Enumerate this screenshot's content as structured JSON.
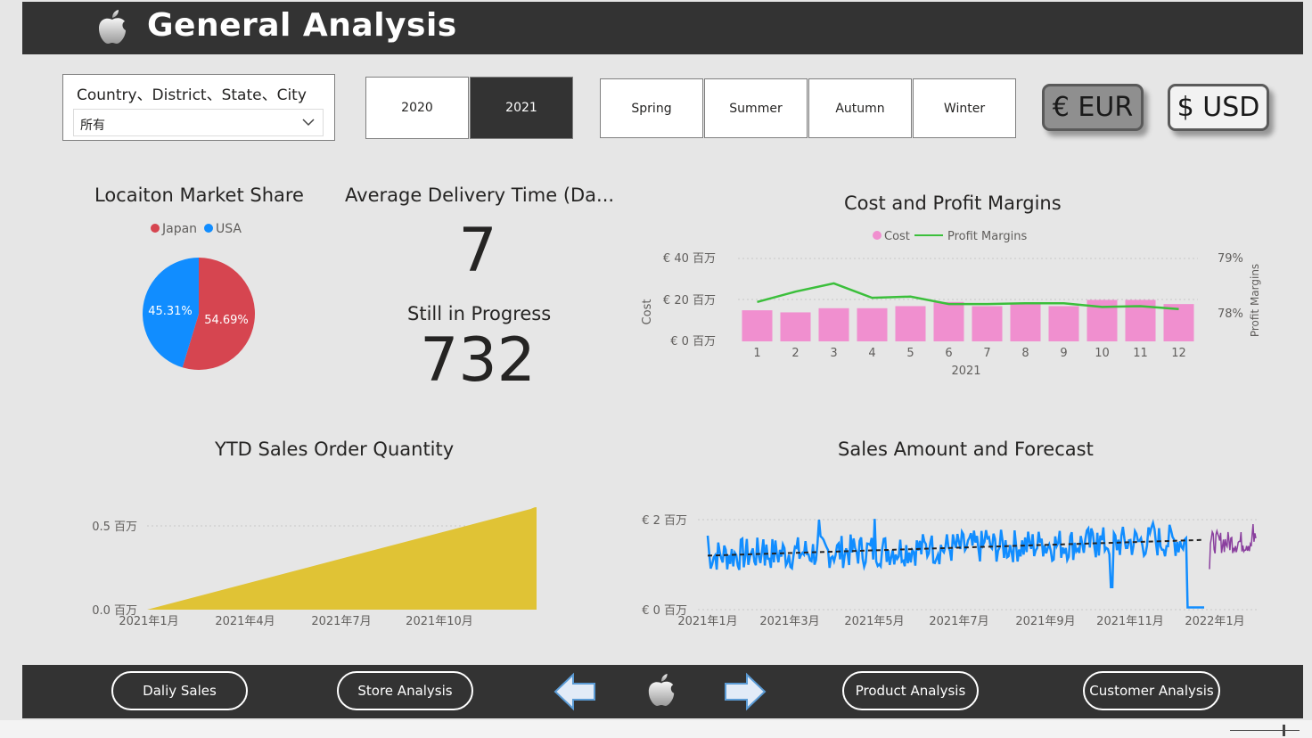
{
  "header": {
    "title": "General Analysis",
    "logo_icon": "apple-icon"
  },
  "slicer": {
    "label": "Country、District、State、City",
    "value": "所有"
  },
  "years": [
    {
      "label": "2020",
      "selected": false
    },
    {
      "label": "2021",
      "selected": true
    }
  ],
  "seasons": [
    "Spring",
    "Summer",
    "Autumn",
    "Winter"
  ],
  "currency": {
    "eur": "€ EUR",
    "usd": "$ USD"
  },
  "market_share": {
    "title": "Locaiton Market Share",
    "legend": [
      "Japan",
      "USA"
    ],
    "colors": {
      "Japan": "#d64550",
      "USA": "#118dff"
    },
    "chart_data": {
      "type": "pie",
      "labels": [
        "Japan",
        "USA"
      ],
      "values": [
        54.69,
        45.31
      ],
      "value_labels": [
        "54.69%",
        "45.31%"
      ]
    }
  },
  "kpi": {
    "delivery_title": "Average Delivery Time (Da...",
    "delivery_value": "7",
    "progress_title": "Still in Progress",
    "progress_value": "732"
  },
  "cost_profit": {
    "title": "Cost and Profit Margins",
    "legend": [
      "Cost",
      "Profit Margins"
    ],
    "y_left_label": "Cost",
    "y_right_label": "Profit Margins",
    "x_group_label": "2021",
    "y_left_ticks": [
      "€ 40 百万",
      "€ 20 百万",
      "€ 0 百万"
    ],
    "y_right_ticks": [
      "79%",
      "78%"
    ],
    "colors": {
      "cost": "#f08fcf",
      "margin": "#3bbf3b"
    },
    "chart_data": {
      "type": "bar",
      "categories": [
        "1",
        "2",
        "3",
        "4",
        "5",
        "6",
        "7",
        "8",
        "9",
        "10",
        "11",
        "12"
      ],
      "series": [
        {
          "name": "Cost",
          "values": [
            15,
            14,
            16,
            16,
            17,
            19,
            17,
            18,
            17,
            20,
            20,
            18
          ]
        },
        {
          "name": "Profit Margins",
          "values": [
            78.15,
            78.4,
            78.6,
            78.25,
            78.28,
            78.1,
            78.1,
            78.12,
            78.12,
            78.03,
            78.05,
            77.98
          ]
        }
      ],
      "ylim_left": [
        0,
        40
      ],
      "ylim_right": [
        77.2,
        79.2
      ]
    }
  },
  "ytd": {
    "title": "YTD Sales Order Quantity",
    "y_ticks": [
      "0.5 百万",
      "0.0 百万"
    ],
    "x_ticks": [
      "2021年1月",
      "2021年4月",
      "2021年7月",
      "2021年10月"
    ],
    "color": "#e0c335",
    "chart_data": {
      "type": "area",
      "x": [
        "2021-01-01",
        "2021-12-31"
      ],
      "values": [
        0,
        0.63
      ],
      "ylim": [
        0,
        0.68
      ]
    }
  },
  "forecast": {
    "title": "Sales Amount and Forecast",
    "y_ticks": [
      "€ 2 百万",
      "€ 0 百万"
    ],
    "x_ticks": [
      "2021年1月",
      "2021年3月",
      "2021年5月",
      "2021年7月",
      "2021年9月",
      "2021年11月",
      "2022年1月"
    ],
    "colors": {
      "actual": "#118dff",
      "forecast": "#8a3f9e",
      "trend": "#222222"
    },
    "chart_data": {
      "type": "line",
      "ylim": [
        0,
        2.2
      ],
      "trend": [
        1.2,
        1.55
      ],
      "forecast_range": [
        0.9,
        1.9
      ]
    }
  },
  "footer": {
    "buttons": [
      "Daliy Sales",
      "Store Analysis",
      "Product Analysis",
      "Customer Analysis"
    ],
    "logo_icon": "apple-icon"
  }
}
